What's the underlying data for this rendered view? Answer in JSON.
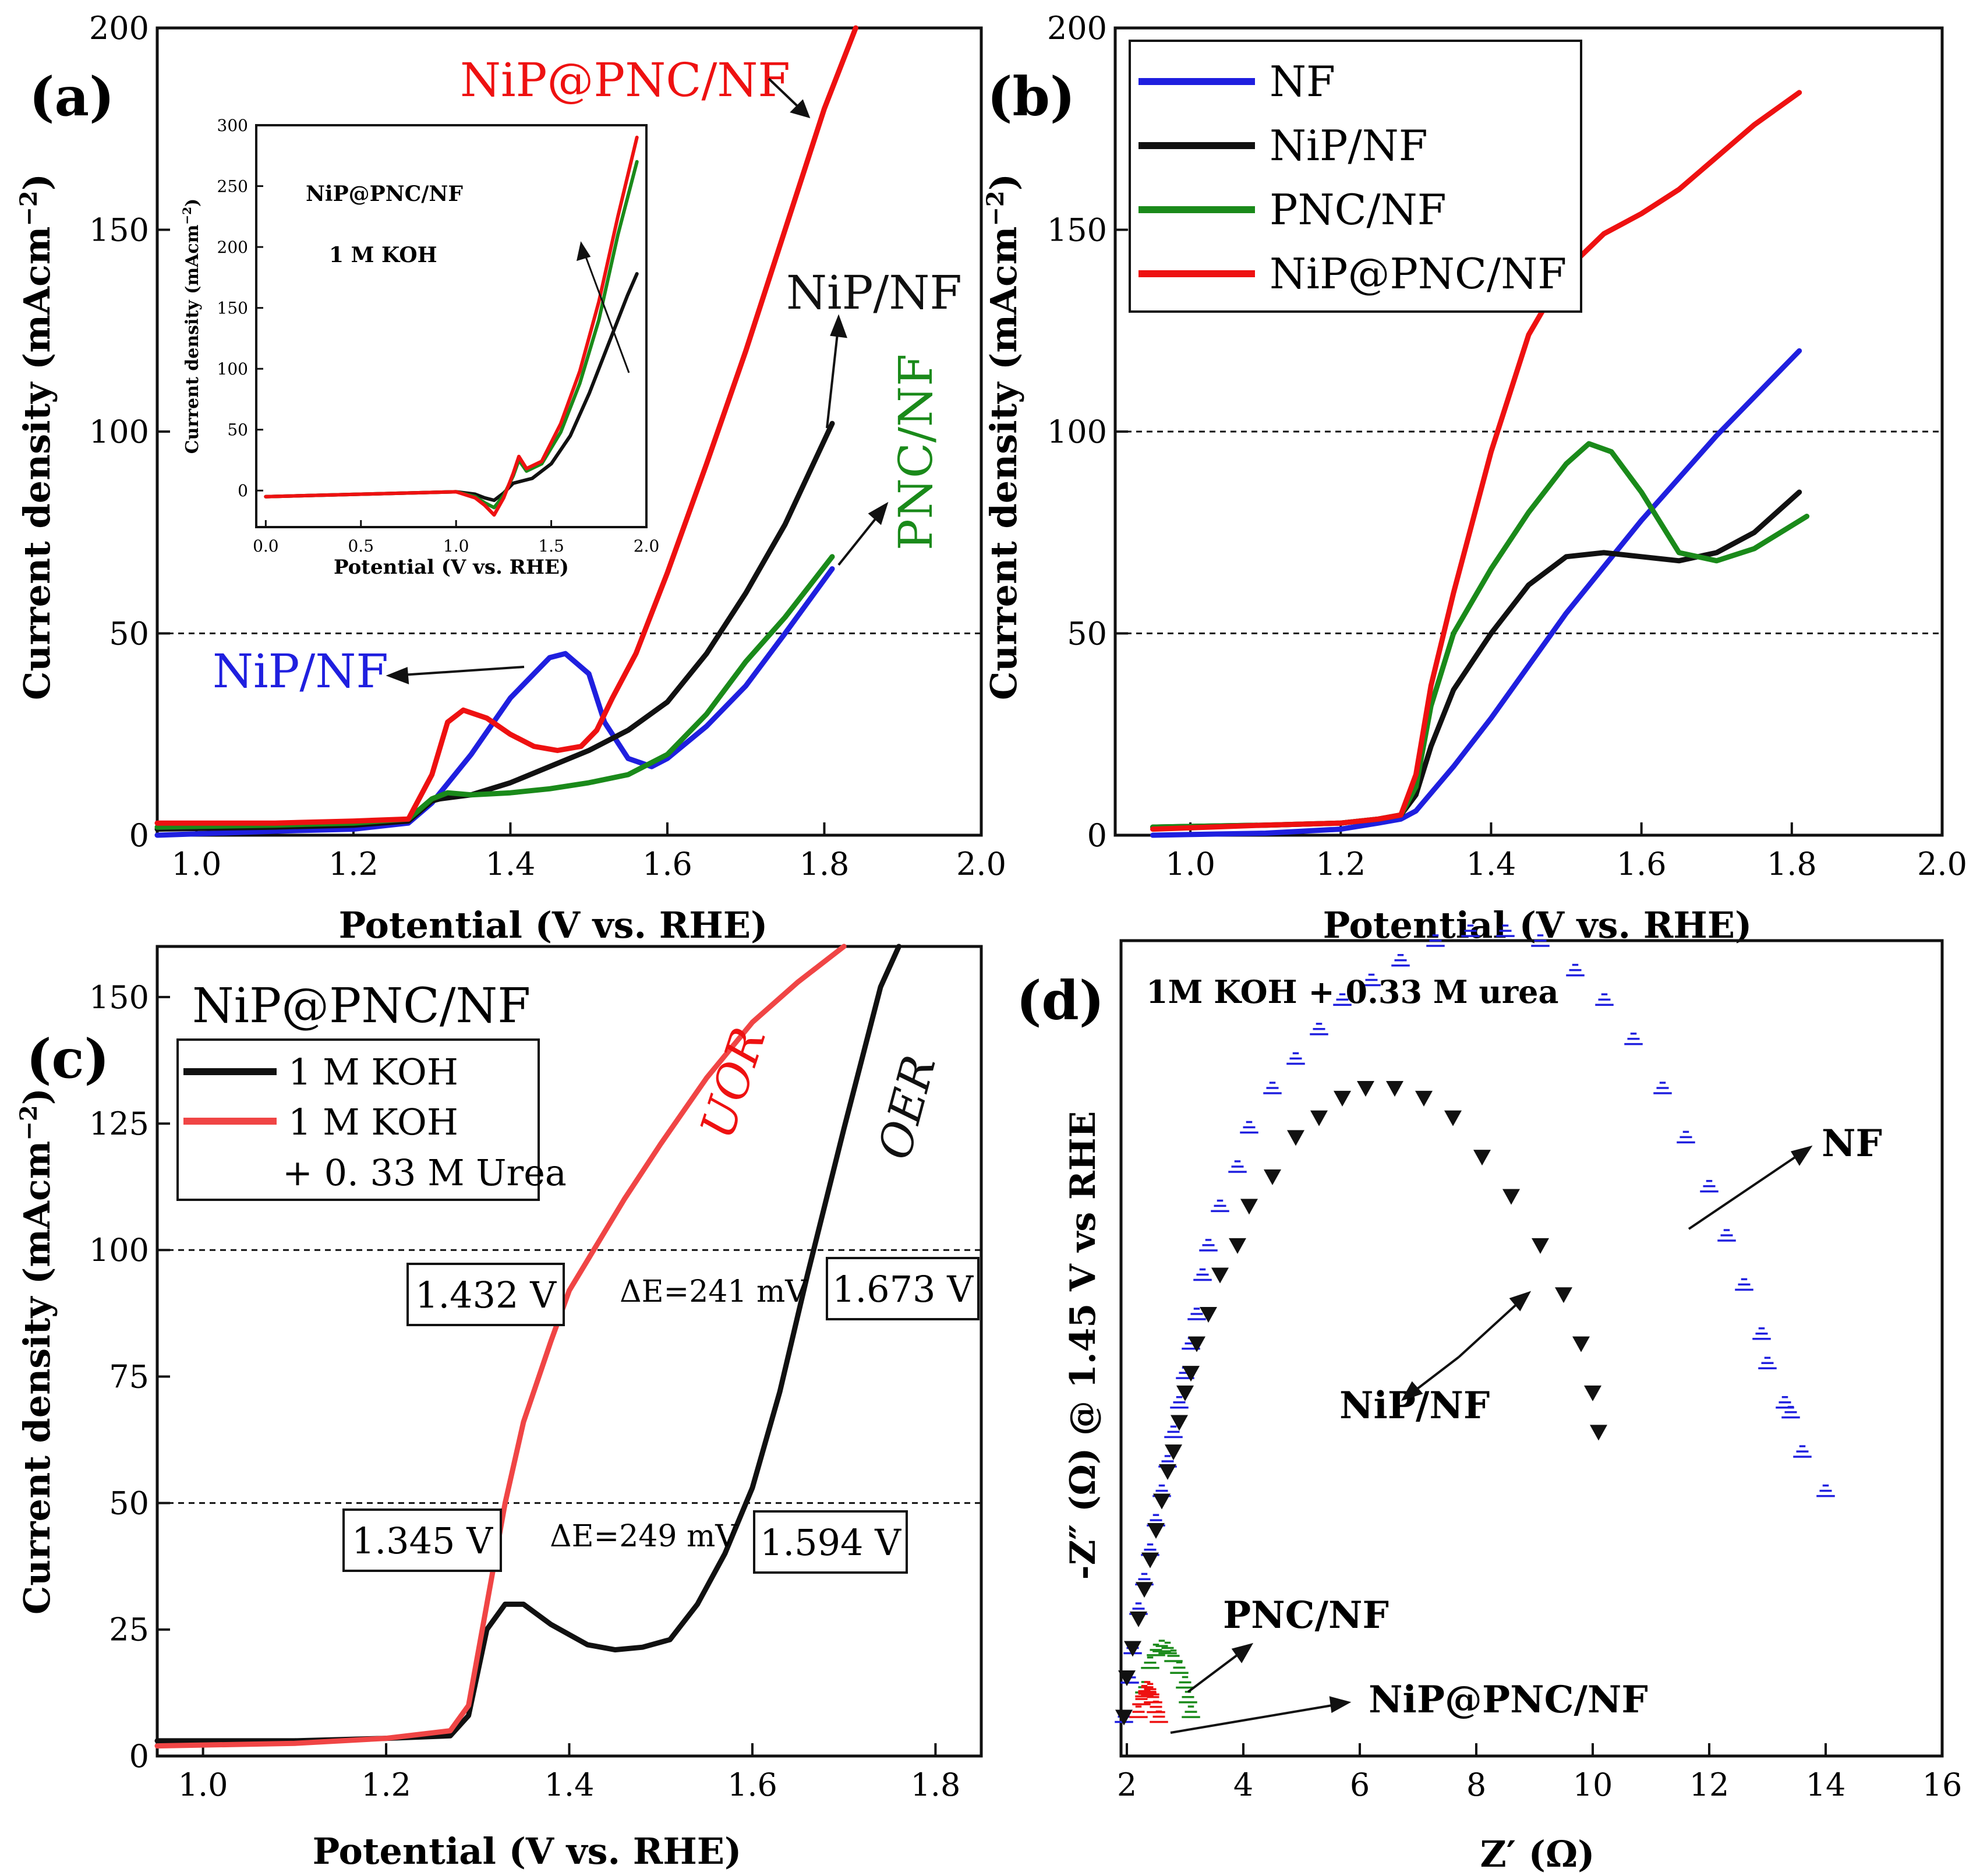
{
  "chart_data": [
    {
      "type": "line",
      "panel_label": "(a)",
      "xlabel": "Potential (V vs. RHE)",
      "ylabel": "Current density (mAcm",
      "ylabel_sup": "−2",
      "ylabel_close": ")",
      "xlim": [
        0.95,
        2.0
      ],
      "ylim": [
        0,
        200
      ],
      "xticks": [
        "1.0",
        "1.2",
        "1.4",
        "1.6",
        "1.8",
        "2.0"
      ],
      "xtick_values": [
        1.0,
        1.2,
        1.4,
        1.6,
        1.8,
        2.0
      ],
      "yticks": [
        "0",
        "50",
        "100",
        "150",
        "200"
      ],
      "ytick_values": [
        0,
        50,
        100,
        150,
        200
      ],
      "hlines": [
        50
      ],
      "series": [
        {
          "name": "NiP/NF (blue)",
          "color": "#1f1fdf",
          "x": [
            0.95,
            1.1,
            1.2,
            1.27,
            1.3,
            1.35,
            1.4,
            1.45,
            1.47,
            1.5,
            1.52,
            1.55,
            1.58,
            1.6,
            1.65,
            1.7,
            1.75,
            1.81
          ],
          "y": [
            0,
            1,
            1.5,
            3,
            8,
            20,
            34,
            44,
            45,
            40,
            28,
            19,
            17,
            19,
            27,
            37,
            50,
            66
          ]
        },
        {
          "name": "NiP/NF (black)",
          "color": "#111111",
          "x": [
            0.95,
            1.1,
            1.2,
            1.27,
            1.3,
            1.31,
            1.35,
            1.4,
            1.45,
            1.5,
            1.55,
            1.6,
            1.65,
            1.7,
            1.75,
            1.81
          ],
          "y": [
            1.5,
            2,
            2.5,
            3.5,
            8.5,
            9,
            10,
            13,
            17,
            21,
            26,
            33,
            45,
            60,
            77,
            102
          ]
        },
        {
          "name": "PNC/NF",
          "color": "#1a8a1a",
          "x": [
            0.95,
            1.1,
            1.2,
            1.27,
            1.3,
            1.32,
            1.35,
            1.4,
            1.45,
            1.5,
            1.55,
            1.6,
            1.65,
            1.7,
            1.75,
            1.81
          ],
          "y": [
            2,
            2.5,
            3,
            4,
            9,
            10.5,
            10,
            10.5,
            11.5,
            13,
            15,
            20,
            30,
            43,
            54,
            69
          ]
        },
        {
          "name": "NiP@PNC/NF",
          "color": "#ee1111",
          "x": [
            0.95,
            1.1,
            1.2,
            1.27,
            1.3,
            1.32,
            1.34,
            1.37,
            1.4,
            1.43,
            1.46,
            1.49,
            1.51,
            1.53,
            1.56,
            1.6,
            1.65,
            1.7,
            1.75,
            1.8,
            1.84
          ],
          "y": [
            3,
            3,
            3.5,
            4,
            15,
            28,
            31,
            29,
            25,
            22,
            21,
            22,
            26,
            34,
            45,
            65,
            92,
            120,
            150,
            180,
            200
          ]
        }
      ],
      "annotations": [
        {
          "text": "NiP@PNC/NF",
          "color": "#ee1111"
        },
        {
          "text": "NiP/NF",
          "color": "#111111"
        },
        {
          "text": "PNC/NF",
          "color": "#1a8a1a"
        },
        {
          "text": "NiP/NF",
          "color": "#1f1fdf"
        }
      ],
      "inset": {
        "xlabel": "Potential (V vs. RHE)",
        "ylabel": "Current density (mAcm",
        "ylabel_sup": "−2",
        "ylabel_close": ")",
        "xlim": [
          -0.05,
          2.0
        ],
        "ylim": [
          -30,
          300
        ],
        "xticks": [
          "0.0",
          "0.5",
          "1.0",
          "1.5",
          "2.0"
        ],
        "xtick_values": [
          0,
          0.5,
          1.0,
          1.5,
          2.0
        ],
        "yticks": [
          "0",
          "50",
          "100",
          "150",
          "200",
          "250",
          "300"
        ],
        "ytick_values": [
          0,
          50,
          100,
          150,
          200,
          250,
          300
        ],
        "text1": "NiP@PNC/NF",
        "text2": "1 M KOH",
        "series": [
          {
            "name": "black",
            "color": "#111111",
            "x": [
              0,
              0.5,
              1.0,
              1.1,
              1.15,
              1.2,
              1.25,
              1.3,
              1.35,
              1.4,
              1.5,
              1.6,
              1.7,
              1.8,
              1.9,
              1.95
            ],
            "y": [
              -5,
              -3,
              -1,
              -3,
              -6,
              -8,
              -2,
              6,
              8,
              10,
              22,
              45,
              80,
              120,
              160,
              178
            ]
          },
          {
            "name": "green",
            "color": "#1a8a1a",
            "x": [
              0,
              0.5,
              1.0,
              1.1,
              1.15,
              1.2,
              1.25,
              1.3,
              1.33,
              1.37,
              1.45,
              1.55,
              1.65,
              1.75,
              1.85,
              1.95
            ],
            "y": [
              -5,
              -3,
              -1,
              -5,
              -10,
              -14,
              -4,
              12,
              25,
              16,
              22,
              48,
              88,
              140,
              210,
              270
            ]
          },
          {
            "name": "red",
            "color": "#ee1111",
            "x": [
              0,
              0.5,
              1.0,
              1.1,
              1.15,
              1.2,
              1.25,
              1.3,
              1.33,
              1.37,
              1.45,
              1.55,
              1.65,
              1.75,
              1.85,
              1.95
            ],
            "y": [
              -5,
              -3,
              -1,
              -6,
              -12,
              -20,
              -6,
              14,
              28,
              18,
              24,
              55,
              98,
              155,
              225,
              290
            ]
          }
        ]
      }
    },
    {
      "type": "line",
      "panel_label": "(b)",
      "xlabel": "Potential (V vs. RHE)",
      "ylabel": "Current density (mAcm",
      "ylabel_sup": "−2",
      "ylabel_close": ")",
      "xlim": [
        0.9,
        2.0
      ],
      "ylim": [
        0,
        200
      ],
      "xticks": [
        "1.0",
        "1.2",
        "1.4",
        "1.6",
        "1.8",
        "2.0"
      ],
      "xtick_values": [
        1.0,
        1.2,
        1.4,
        1.6,
        1.8,
        2.0
      ],
      "yticks": [
        "0",
        "50",
        "100",
        "150",
        "200"
      ],
      "ytick_values": [
        0,
        50,
        100,
        150,
        200
      ],
      "hlines": [
        50,
        100
      ],
      "legend": [
        "NF",
        "NiP/NF",
        "PNC/NF",
        "NiP@PNC/NF"
      ],
      "series": [
        {
          "name": "NF",
          "color": "#1f1fdf",
          "x": [
            0.95,
            1.1,
            1.2,
            1.25,
            1.28,
            1.3,
            1.35,
            1.4,
            1.5,
            1.6,
            1.7,
            1.81
          ],
          "y": [
            0,
            0.5,
            1.5,
            3,
            4,
            6,
            17,
            29,
            55,
            78,
            99,
            120
          ]
        },
        {
          "name": "NiP/NF",
          "color": "#111111",
          "x": [
            0.95,
            1.1,
            1.2,
            1.25,
            1.28,
            1.3,
            1.32,
            1.35,
            1.4,
            1.45,
            1.5,
            1.55,
            1.6,
            1.65,
            1.7,
            1.75,
            1.81
          ],
          "y": [
            2,
            2.5,
            3,
            4,
            5,
            10,
            22,
            36,
            50,
            62,
            69,
            70,
            69,
            68,
            70,
            75,
            85
          ]
        },
        {
          "name": "PNC/NF",
          "color": "#1a8a1a",
          "x": [
            0.95,
            1.1,
            1.2,
            1.25,
            1.28,
            1.3,
            1.32,
            1.35,
            1.4,
            1.45,
            1.5,
            1.53,
            1.56,
            1.6,
            1.65,
            1.7,
            1.75,
            1.82
          ],
          "y": [
            2,
            2.5,
            3,
            4,
            5,
            12,
            32,
            50,
            66,
            80,
            92,
            97,
            95,
            85,
            70,
            68,
            71,
            79
          ]
        },
        {
          "name": "NiP@PNC/NF",
          "color": "#ee1111",
          "x": [
            0.95,
            1.1,
            1.2,
            1.25,
            1.28,
            1.3,
            1.32,
            1.35,
            1.4,
            1.45,
            1.5,
            1.55,
            1.6,
            1.65,
            1.7,
            1.75,
            1.81
          ],
          "y": [
            1.5,
            2.5,
            3,
            4,
            5,
            15,
            37,
            60,
            95,
            124,
            140,
            149,
            154,
            160,
            168,
            176,
            184
          ]
        }
      ]
    },
    {
      "type": "line",
      "panel_label": "(c)",
      "title": "NiP@PNC/NF",
      "xlabel": "Potential (V vs. RHE)",
      "ylabel": "Current density (mAcm",
      "ylabel_sup": "−2",
      "ylabel_close": ")",
      "xlim": [
        0.95,
        1.85
      ],
      "ylim": [
        0,
        160
      ],
      "xticks": [
        "1.0",
        "1.2",
        "1.4",
        "1.6",
        "1.8"
      ],
      "xtick_values": [
        1.0,
        1.2,
        1.4,
        1.6,
        1.8
      ],
      "yticks": [
        "0",
        "25",
        "50",
        "75",
        "100",
        "125",
        "150"
      ],
      "ytick_values": [
        0,
        25,
        50,
        75,
        100,
        125,
        150
      ],
      "hlines": [
        50,
        100
      ],
      "legend": [
        "1 M KOH",
        "1 M KOH",
        "+ 0. 33 M Urea"
      ],
      "series": [
        {
          "name": "1 M KOH",
          "color": "#111111",
          "x": [
            0.95,
            1.1,
            1.2,
            1.27,
            1.29,
            1.31,
            1.33,
            1.35,
            1.38,
            1.42,
            1.45,
            1.48,
            1.51,
            1.54,
            1.57,
            1.6,
            1.63,
            1.66,
            1.7,
            1.74,
            1.76
          ],
          "y": [
            3,
            3,
            3.5,
            4,
            8,
            25,
            30,
            30,
            26,
            22,
            21,
            21.5,
            23,
            30,
            40,
            53,
            72,
            95,
            124,
            152,
            162
          ]
        },
        {
          "name": "1 M KOH + 0.33 M Urea",
          "color": "#f04545",
          "x": [
            0.95,
            1.1,
            1.2,
            1.27,
            1.29,
            1.31,
            1.33,
            1.35,
            1.38,
            1.4,
            1.43,
            1.46,
            1.5,
            1.55,
            1.6,
            1.65,
            1.7
          ],
          "y": [
            2,
            2.5,
            3.5,
            5,
            10,
            30,
            50,
            66,
            82,
            92,
            101,
            110,
            121,
            134,
            145,
            153,
            162
          ]
        }
      ],
      "annotations": [
        {
          "text": "UOR",
          "color": "#ee1111"
        },
        {
          "text": "OER",
          "color": "#111111"
        },
        {
          "text": "1.432 V"
        },
        {
          "text": "ΔE=241 mV"
        },
        {
          "text": "1.673 V"
        },
        {
          "text": "1.345 V"
        },
        {
          "text": "ΔE=249 mV"
        },
        {
          "text": "1.594 V"
        }
      ]
    },
    {
      "type": "scatter",
      "panel_label": "(d)",
      "title": "1M KOH + 0.33 M urea",
      "xlabel": "Z′ (Ω)",
      "ylabel": "-Z″ (Ω) @ 1.45 V vs RHE",
      "xlim": [
        1.9,
        16
      ],
      "ylim": [
        0,
        8.3
      ],
      "xticks": [
        "2",
        "4",
        "6",
        "8",
        "10",
        "12",
        "14",
        "16"
      ],
      "xtick_values": [
        2,
        4,
        6,
        8,
        10,
        12,
        14,
        16
      ],
      "series": [
        {
          "name": "NF",
          "color": "#1f1fdf",
          "marker": "hatched-triangle",
          "x": [
            1.95,
            2.05,
            2.1,
            2.2,
            2.3,
            2.4,
            2.5,
            2.6,
            2.7,
            2.8,
            2.9,
            3.0,
            3.1,
            3.2,
            3.3,
            3.4,
            3.6,
            3.9,
            4.1,
            4.5,
            4.9,
            5.3,
            5.7,
            6.2,
            6.7,
            7.3,
            7.9,
            8.5,
            9.1,
            9.7,
            10.2,
            10.7,
            11.2,
            11.6,
            12.0,
            12.3,
            12.6,
            12.9,
            13.0,
            13.3,
            13.4,
            13.6,
            14.0
          ],
          "y": [
            0.4,
            0.8,
            1.1,
            1.5,
            1.8,
            2.1,
            2.4,
            2.7,
            3.0,
            3.3,
            3.6,
            3.9,
            4.2,
            4.5,
            4.9,
            5.2,
            5.6,
            6.0,
            6.4,
            6.8,
            7.1,
            7.4,
            7.7,
            7.9,
            8.1,
            8.3,
            8.4,
            8.4,
            8.3,
            8.0,
            7.7,
            7.3,
            6.8,
            6.3,
            5.8,
            5.3,
            4.8,
            4.3,
            4.0,
            3.6,
            3.5,
            3.1,
            2.7
          ]
        },
        {
          "name": "NiP/NF",
          "color": "#111111",
          "marker": "filled-down-triangle",
          "x": [
            1.95,
            2.0,
            2.1,
            2.2,
            2.3,
            2.4,
            2.5,
            2.6,
            2.7,
            2.8,
            2.9,
            3.0,
            3.1,
            3.2,
            3.4,
            3.6,
            3.9,
            4.1,
            4.5,
            4.9,
            5.3,
            5.7,
            6.1,
            6.6,
            7.1,
            7.6,
            8.1,
            8.6,
            9.1,
            9.5,
            9.8,
            10.0,
            10.1
          ],
          "y": [
            0.4,
            0.8,
            1.1,
            1.4,
            1.7,
            2.0,
            2.3,
            2.6,
            2.9,
            3.1,
            3.4,
            3.7,
            3.9,
            4.2,
            4.5,
            4.9,
            5.2,
            5.6,
            5.9,
            6.3,
            6.5,
            6.7,
            6.8,
            6.8,
            6.7,
            6.5,
            6.1,
            5.7,
            5.2,
            4.7,
            4.2,
            3.7,
            3.3
          ]
        },
        {
          "name": "PNC/NF",
          "color": "#1a8a1a",
          "marker": "hatched-triangle",
          "x": [
            2.3,
            2.4,
            2.5,
            2.6,
            2.7,
            2.8,
            2.9,
            3.0,
            3.05,
            3.1
          ],
          "y": [
            0.7,
            0.95,
            1.08,
            1.12,
            1.1,
            1.02,
            0.9,
            0.75,
            0.6,
            0.45
          ]
        },
        {
          "name": "NiP@PNC/NF",
          "color": "#ee1111",
          "marker": "hatched-triangle",
          "x": [
            2.2,
            2.25,
            2.3,
            2.35,
            2.4,
            2.45,
            2.5,
            2.55
          ],
          "y": [
            0.45,
            0.58,
            0.66,
            0.7,
            0.68,
            0.6,
            0.5,
            0.4
          ]
        }
      ],
      "annotations": [
        {
          "text": "NF"
        },
        {
          "text": "NiP/NF"
        },
        {
          "text": "PNC/NF"
        },
        {
          "text": "NiP@PNC/NF"
        }
      ]
    }
  ]
}
